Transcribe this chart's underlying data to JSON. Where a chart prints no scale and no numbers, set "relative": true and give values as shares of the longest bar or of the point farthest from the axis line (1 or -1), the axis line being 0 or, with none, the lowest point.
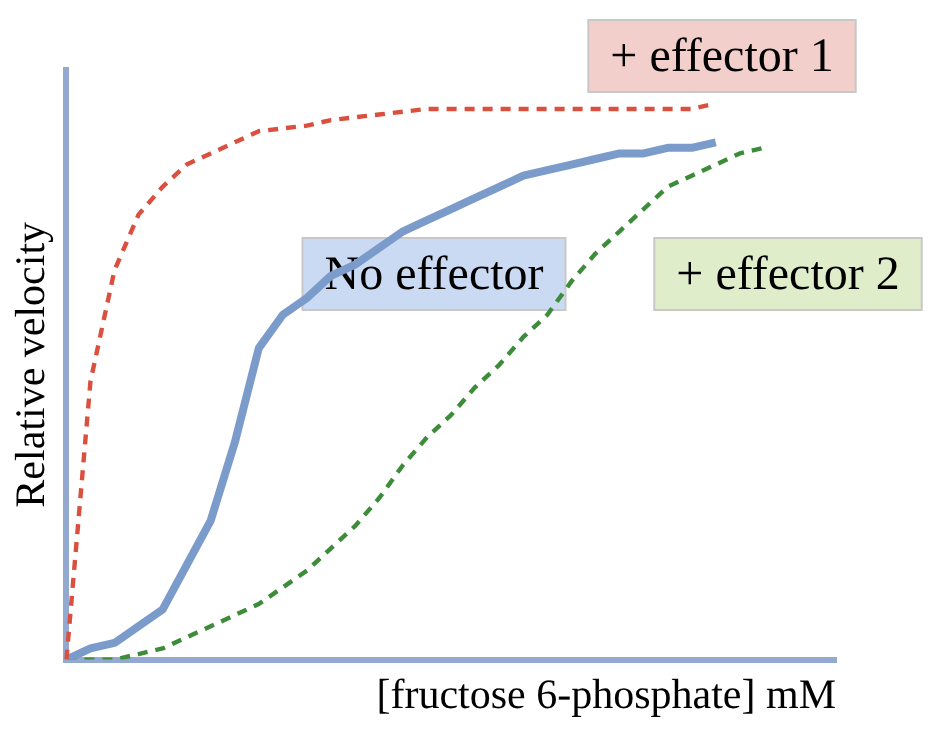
{
  "chart_data": {
    "type": "line",
    "relative": true,
    "xlabel": "[fructose 6-phosphate] mM",
    "ylabel": "Relative velocity",
    "tick_labels": false,
    "grid": false,
    "legend": false,
    "marker": "none",
    "categories": [
      null,
      null,
      null,
      null,
      null,
      null,
      null,
      null,
      null,
      null,
      null,
      null,
      null,
      null,
      null,
      null,
      null,
      null,
      null,
      null,
      null,
      null,
      null,
      null,
      null,
      null,
      null,
      null,
      null,
      null,
      null,
      null,
      null
    ],
    "series": [
      {
        "name": "+ effector 1",
        "color": "#d9503f",
        "line_style": "dashed",
        "values": [
          0,
          0.5,
          0.7,
          0.8,
          0.85,
          0.89,
          0.91,
          0.93,
          0.95,
          0.955,
          0.96,
          0.97,
          0.975,
          0.98,
          0.985,
          0.99,
          0.99,
          0.99,
          0.99,
          0.99,
          0.99,
          0.99,
          0.99,
          0.99,
          0.99,
          0.99,
          0.99,
          1,
          null,
          null,
          null,
          null,
          null
        ]
      },
      {
        "name": "No effector",
        "color": "#7b9bcb",
        "line_style": "solid",
        "values": [
          0,
          0.02,
          0.03,
          0.06,
          0.09,
          0.17,
          0.25,
          0.39,
          0.56,
          0.62,
          0.65,
          0.69,
          0.71,
          0.74,
          0.77,
          0.79,
          0.81,
          0.83,
          0.85,
          0.87,
          0.88,
          0.89,
          0.9,
          0.91,
          0.91,
          0.92,
          0.92,
          0.93,
          null,
          null,
          null,
          null,
          null
        ]
      },
      {
        "name": "+ effector 2",
        "color": "#3d8c3a",
        "line_style": "dashed",
        "values": [
          0,
          0,
          0,
          0.01,
          0.02,
          0.04,
          0.06,
          0.08,
          0.1,
          0.13,
          0.16,
          0.2,
          0.24,
          0.29,
          0.35,
          0.4,
          0.44,
          0.49,
          0.53,
          0.58,
          0.62,
          0.68,
          0.73,
          0.77,
          0.81,
          0.85,
          0.87,
          0.89,
          0.91,
          0.92,
          null,
          null,
          null
        ]
      }
    ]
  }
}
